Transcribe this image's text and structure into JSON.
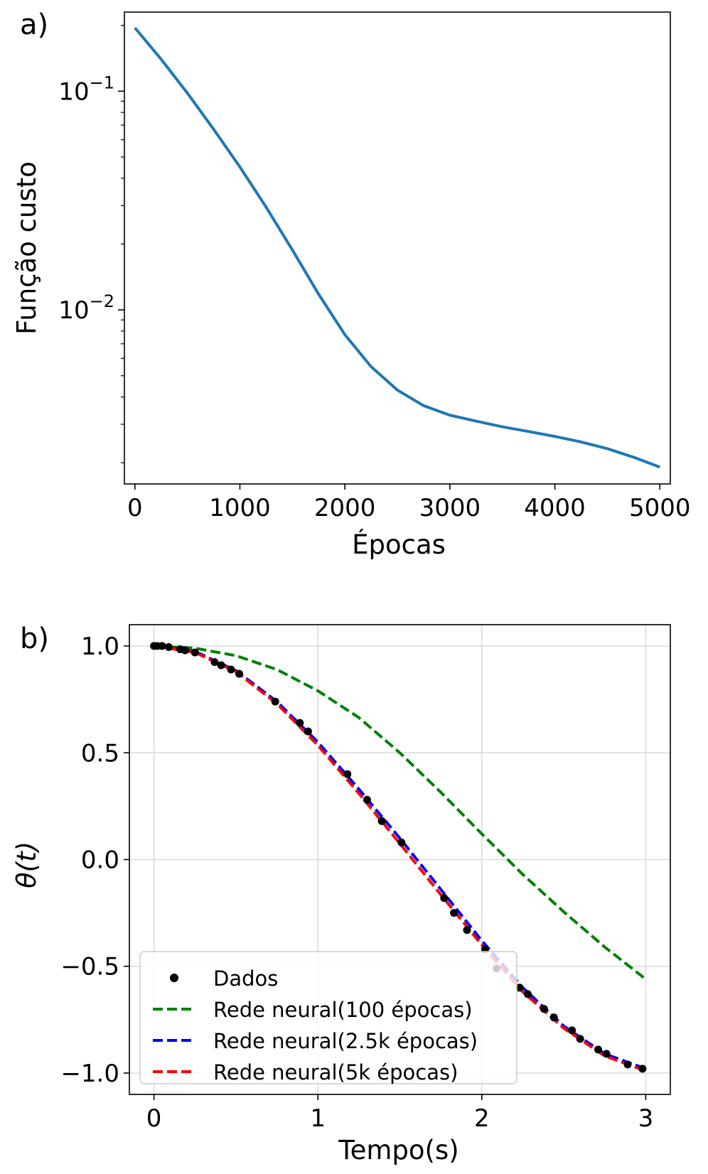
{
  "chart_data": [
    {
      "panel_label": "a)",
      "type": "line",
      "xlabel": "Épocas",
      "ylabel": "Função custo",
      "yscale": "log",
      "xlim": [
        -100,
        5100
      ],
      "ylim": [
        0.0016,
        0.23
      ],
      "xticks": [
        {
          "value": 0,
          "label": "0"
        },
        {
          "value": 1000,
          "label": "1000"
        },
        {
          "value": 2000,
          "label": "2000"
        },
        {
          "value": 3000,
          "label": "3000"
        },
        {
          "value": 4000,
          "label": "4000"
        },
        {
          "value": 5000,
          "label": "5000"
        }
      ],
      "yticks": [
        {
          "value": 0.1,
          "base": "10",
          "exp": "−1"
        },
        {
          "value": 0.01,
          "base": "10",
          "exp": "−2"
        }
      ],
      "series": [
        {
          "name": "Função custo",
          "color": "#1f77b4",
          "x": [
            0,
            250,
            500,
            750,
            1000,
            1250,
            1500,
            1750,
            2000,
            2250,
            2500,
            2750,
            3000,
            3250,
            3500,
            3750,
            4000,
            4250,
            4500,
            4750,
            5000
          ],
          "y": [
            0.195,
            0.14,
            0.098,
            0.067,
            0.045,
            0.0295,
            0.0188,
            0.0118,
            0.0077,
            0.0055,
            0.0043,
            0.00365,
            0.0033,
            0.0031,
            0.00292,
            0.00278,
            0.00264,
            0.00249,
            0.00232,
            0.00212,
            0.00191
          ]
        }
      ]
    },
    {
      "panel_label": "b)",
      "type": "line",
      "xlabel": "Tempo(s)",
      "ylabel": "θ(t)",
      "xlim": [
        -0.15,
        3.15
      ],
      "ylim": [
        -1.1,
        1.1
      ],
      "grid": true,
      "legend_position": "lower-left",
      "xticks": [
        {
          "value": 0,
          "label": "0"
        },
        {
          "value": 1,
          "label": "1"
        },
        {
          "value": 2,
          "label": "2"
        },
        {
          "value": 3,
          "label": "3"
        }
      ],
      "yticks": [
        {
          "value": 1.0,
          "label": "1.0"
        },
        {
          "value": 0.5,
          "label": "0.5"
        },
        {
          "value": 0.0,
          "label": "0.0"
        },
        {
          "value": -0.5,
          "label": "−0.5"
        },
        {
          "value": -1.0,
          "label": "−1.0"
        }
      ],
      "series": [
        {
          "name": "Dados",
          "style": "points",
          "color": "#000000",
          "x": [
            0.0,
            0.02,
            0.05,
            0.09,
            0.16,
            0.19,
            0.25,
            0.37,
            0.41,
            0.47,
            0.52,
            0.74,
            0.89,
            0.94,
            1.18,
            1.3,
            1.39,
            1.51,
            1.77,
            1.83,
            1.91,
            2.02,
            2.09,
            2.23,
            2.28,
            2.38,
            2.44,
            2.55,
            2.6,
            2.71,
            2.76,
            2.89,
            2.98
          ],
          "y": [
            1.0,
            1.0,
            1.0,
            0.995,
            0.985,
            0.98,
            0.97,
            0.925,
            0.91,
            0.89,
            0.87,
            0.74,
            0.64,
            0.6,
            0.4,
            0.28,
            0.18,
            0.08,
            -0.18,
            -0.25,
            -0.33,
            -0.42,
            -0.51,
            -0.6,
            -0.63,
            -0.7,
            -0.74,
            -0.8,
            -0.84,
            -0.89,
            -0.91,
            -0.96,
            -0.98
          ]
        },
        {
          "name": "Rede neural(100 épocas)",
          "style": "dashed",
          "color": "#008000",
          "x": [
            0,
            0.25,
            0.5,
            0.75,
            1.0,
            1.25,
            1.5,
            1.75,
            2.0,
            2.25,
            2.5,
            2.75,
            3.0
          ],
          "y": [
            1.0,
            0.99,
            0.955,
            0.89,
            0.79,
            0.665,
            0.5,
            0.315,
            0.12,
            -0.07,
            -0.245,
            -0.41,
            -0.56
          ]
        },
        {
          "name": "Rede neural(2.5k épocas)",
          "style": "dashed",
          "color": "#0000ff",
          "x": [
            0,
            0.25,
            0.5,
            0.75,
            1.0,
            1.25,
            1.5,
            1.75,
            2.0,
            2.25,
            2.5,
            2.75,
            3.0
          ],
          "y": [
            1.0,
            0.975,
            0.885,
            0.74,
            0.55,
            0.33,
            0.1,
            -0.14,
            -0.38,
            -0.6,
            -0.78,
            -0.91,
            -0.98
          ]
        },
        {
          "name": "Rede neural(5k épocas)",
          "style": "dashed",
          "color": "#ff0000",
          "x": [
            0,
            0.25,
            0.5,
            0.75,
            1.0,
            1.25,
            1.5,
            1.75,
            2.0,
            2.25,
            2.5,
            2.75,
            3.0
          ],
          "y": [
            1.0,
            0.97,
            0.88,
            0.73,
            0.535,
            0.31,
            0.075,
            -0.165,
            -0.4,
            -0.62,
            -0.79,
            -0.92,
            -0.99
          ]
        }
      ]
    }
  ]
}
